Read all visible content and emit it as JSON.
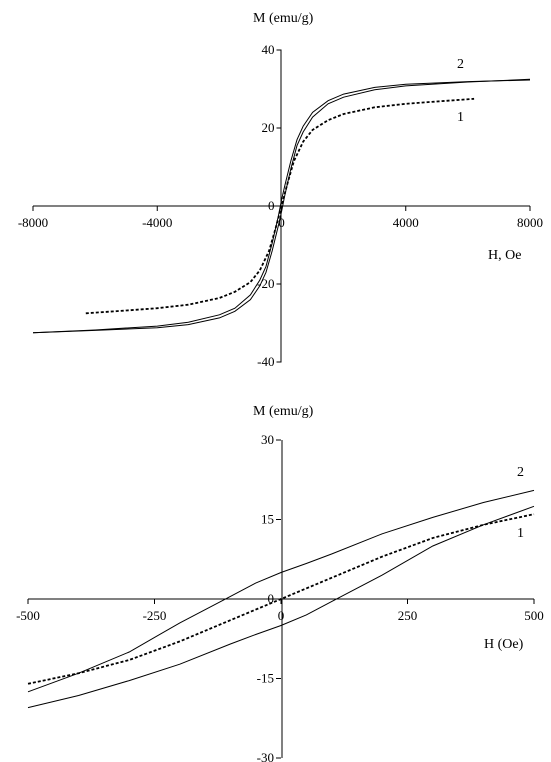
{
  "chart_data": [
    {
      "type": "line",
      "id": "full-loop",
      "ylabel": "M (emu/g)",
      "xlabel": "H, Oe",
      "xlim": [
        -8000,
        8000
      ],
      "ylim": [
        -40,
        40
      ],
      "x_ticks": [
        -8000,
        -4000,
        0,
        4000,
        8000
      ],
      "y_ticks": [
        -40,
        -20,
        0,
        20,
        40
      ],
      "series": [
        {
          "name": "1",
          "style": "dotted",
          "x": [
            -6300,
            -5000,
            -4000,
            -3000,
            -2000,
            -1500,
            -1000,
            -700,
            -400,
            -200,
            0,
            200,
            400,
            700,
            1000,
            1500,
            2000,
            3000,
            4000,
            5000,
            6200
          ],
          "y": [
            -27.5,
            -26.8,
            -26.2,
            -25.3,
            -23.6,
            -22.0,
            -19.5,
            -16.5,
            -11.5,
            -6.0,
            0.0,
            6.0,
            11.5,
            16.5,
            19.5,
            22.0,
            23.6,
            25.3,
            26.2,
            26.8,
            27.5
          ]
        },
        {
          "name": "2",
          "style": "solid",
          "x": [
            -8000,
            -6000,
            -4000,
            -3000,
            -2000,
            -1500,
            -1000,
            -700,
            -500,
            -300,
            -100,
            0,
            100,
            300,
            500,
            700,
            1000,
            1500,
            2000,
            3000,
            4000,
            6000,
            8000
          ],
          "y_upper": [
            -32.5,
            -31.8,
            -30.8,
            -29.8,
            -27.9,
            -26.2,
            -22.8,
            -19.0,
            -15.5,
            -9.5,
            -2.5,
            1.5,
            5.0,
            11.5,
            17.0,
            20.5,
            24.0,
            27.0,
            28.7,
            30.4,
            31.2,
            31.9,
            32.3
          ],
          "y_lower": [
            -32.5,
            -31.9,
            -31.2,
            -30.4,
            -28.7,
            -27.0,
            -24.0,
            -20.5,
            -17.0,
            -11.5,
            -5.0,
            -1.5,
            2.5,
            9.5,
            15.5,
            19.0,
            22.8,
            26.2,
            27.9,
            29.8,
            30.8,
            31.8,
            32.5
          ]
        }
      ]
    },
    {
      "type": "line",
      "id": "zoomed-loop",
      "ylabel": "M (emu/g)",
      "xlabel": "H (Oe)",
      "xlim": [
        -500,
        500
      ],
      "ylim": [
        -30,
        30
      ],
      "x_ticks": [
        -500,
        -250,
        0,
        250,
        500
      ],
      "y_ticks": [
        -30,
        -15,
        0,
        15,
        30
      ],
      "series": [
        {
          "name": "1",
          "style": "dotted",
          "x": [
            -500,
            -400,
            -300,
            -200,
            -100,
            -50,
            0,
            50,
            100,
            200,
            300,
            400,
            500
          ],
          "y": [
            -16.0,
            -14.0,
            -11.5,
            -8.0,
            -4.0,
            -2.0,
            0.0,
            2.0,
            4.0,
            8.0,
            11.5,
            14.0,
            16.0
          ]
        },
        {
          "name": "2",
          "style": "solid",
          "x": [
            -500,
            -400,
            -300,
            -200,
            -100,
            -50,
            0,
            50,
            100,
            200,
            300,
            400,
            500
          ],
          "y_upper": [
            -17.5,
            -14.0,
            -10.0,
            -4.5,
            0.5,
            3.0,
            5.0,
            6.7,
            8.5,
            12.3,
            15.4,
            18.2,
            20.5
          ],
          "y_lower": [
            -20.5,
            -18.2,
            -15.4,
            -12.3,
            -8.5,
            -6.7,
            -5.0,
            -3.0,
            -0.5,
            4.5,
            10.0,
            14.0,
            17.5
          ]
        }
      ]
    }
  ]
}
